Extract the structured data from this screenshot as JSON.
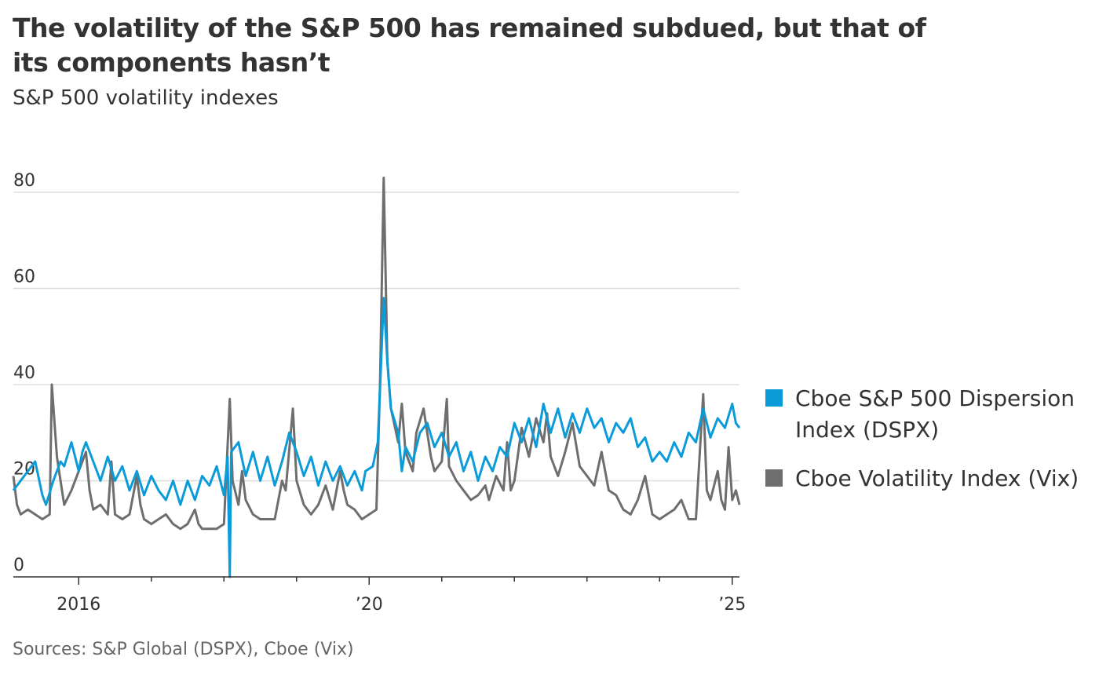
{
  "title": "The volatility of the S&P 500 has remained subdued, but that of its components hasn’t",
  "subtitle": "S&P 500 volatility indexes",
  "source": "Sources: S&P Global (DSPX), Cboe (Vix)",
  "legend": {
    "dspx": "Cboe S&P 500 Dispersion Index (DSPX)",
    "vix": "Cboe Volatility Index (Vix)"
  },
  "colors": {
    "dspx": "#0b9bd9",
    "vix": "#6e6e6e",
    "grid": "#dddddd",
    "axis": "#333333"
  },
  "chart_data": {
    "type": "line",
    "title": "The volatility of the S&P 500 has remained subdued, but that of its components hasn’t",
    "subtitle": "S&P 500 volatility indexes",
    "xlabel": "",
    "ylabel": "",
    "xlim": [
      2015.1,
      2025.1
    ],
    "ylim": [
      0,
      80
    ],
    "x_ticks": [
      2016,
      2017,
      2018,
      2019,
      2020,
      2021,
      2022,
      2023,
      2024,
      2025
    ],
    "x_tick_labels": [
      {
        "x": 2016,
        "label": "2016"
      },
      {
        "x": 2020,
        "label": "’20"
      },
      {
        "x": 2025,
        "label": "’25"
      }
    ],
    "y_ticks": [
      0,
      20,
      40,
      60,
      80
    ],
    "y_tick_labels": [
      "0",
      "20",
      "40",
      "60",
      "80"
    ],
    "grid": "horizontal",
    "legend_position": "right",
    "series": [
      {
        "name": "Cboe S&P 500 Dispersion Index (DSPX)",
        "color": "#0b9bd9",
        "points": [
          [
            2015.1,
            18
          ],
          [
            2015.2,
            20
          ],
          [
            2015.3,
            22
          ],
          [
            2015.4,
            24
          ],
          [
            2015.5,
            17
          ],
          [
            2015.55,
            15
          ],
          [
            2015.65,
            20
          ],
          [
            2015.75,
            24
          ],
          [
            2015.8,
            23
          ],
          [
            2015.9,
            28
          ],
          [
            2016.0,
            22
          ],
          [
            2016.05,
            26
          ],
          [
            2016.1,
            28
          ],
          [
            2016.2,
            24
          ],
          [
            2016.3,
            20
          ],
          [
            2016.4,
            25
          ],
          [
            2016.5,
            20
          ],
          [
            2016.6,
            23
          ],
          [
            2016.7,
            18
          ],
          [
            2016.8,
            22
          ],
          [
            2016.9,
            17
          ],
          [
            2017.0,
            21
          ],
          [
            2017.1,
            18
          ],
          [
            2017.2,
            16
          ],
          [
            2017.3,
            20
          ],
          [
            2017.4,
            15
          ],
          [
            2017.5,
            20
          ],
          [
            2017.6,
            16
          ],
          [
            2017.7,
            21
          ],
          [
            2017.8,
            19
          ],
          [
            2017.9,
            23
          ],
          [
            2018.0,
            17
          ],
          [
            2018.05,
            25
          ],
          [
            2018.08,
            0
          ],
          [
            2018.1,
            26
          ],
          [
            2018.2,
            28
          ],
          [
            2018.3,
            21
          ],
          [
            2018.4,
            26
          ],
          [
            2018.5,
            20
          ],
          [
            2018.6,
            25
          ],
          [
            2018.7,
            19
          ],
          [
            2018.8,
            24
          ],
          [
            2018.9,
            30
          ],
          [
            2019.0,
            26
          ],
          [
            2019.1,
            21
          ],
          [
            2019.2,
            25
          ],
          [
            2019.3,
            19
          ],
          [
            2019.4,
            24
          ],
          [
            2019.5,
            20
          ],
          [
            2019.6,
            23
          ],
          [
            2019.7,
            19
          ],
          [
            2019.8,
            22
          ],
          [
            2019.9,
            18
          ],
          [
            2019.95,
            22
          ],
          [
            2020.05,
            23
          ],
          [
            2020.12,
            28
          ],
          [
            2020.2,
            58
          ],
          [
            2020.25,
            45
          ],
          [
            2020.3,
            35
          ],
          [
            2020.4,
            30
          ],
          [
            2020.45,
            22
          ],
          [
            2020.5,
            27
          ],
          [
            2020.6,
            24
          ],
          [
            2020.7,
            30
          ],
          [
            2020.8,
            32
          ],
          [
            2020.9,
            27
          ],
          [
            2021.0,
            30
          ],
          [
            2021.1,
            25
          ],
          [
            2021.2,
            28
          ],
          [
            2021.3,
            22
          ],
          [
            2021.4,
            26
          ],
          [
            2021.5,
            20
          ],
          [
            2021.6,
            25
          ],
          [
            2021.7,
            22
          ],
          [
            2021.8,
            27
          ],
          [
            2021.9,
            25
          ],
          [
            2022.0,
            32
          ],
          [
            2022.1,
            28
          ],
          [
            2022.2,
            33
          ],
          [
            2022.3,
            27
          ],
          [
            2022.4,
            36
          ],
          [
            2022.5,
            30
          ],
          [
            2022.6,
            35
          ],
          [
            2022.7,
            29
          ],
          [
            2022.8,
            34
          ],
          [
            2022.9,
            30
          ],
          [
            2023.0,
            35
          ],
          [
            2023.1,
            31
          ],
          [
            2023.2,
            33
          ],
          [
            2023.3,
            28
          ],
          [
            2023.4,
            32
          ],
          [
            2023.5,
            30
          ],
          [
            2023.6,
            33
          ],
          [
            2023.7,
            27
          ],
          [
            2023.8,
            29
          ],
          [
            2023.9,
            24
          ],
          [
            2024.0,
            26
          ],
          [
            2024.1,
            24
          ],
          [
            2024.2,
            28
          ],
          [
            2024.3,
            25
          ],
          [
            2024.4,
            30
          ],
          [
            2024.5,
            28
          ],
          [
            2024.6,
            35
          ],
          [
            2024.7,
            29
          ],
          [
            2024.8,
            33
          ],
          [
            2024.9,
            31
          ],
          [
            2025.0,
            36
          ],
          [
            2025.05,
            32
          ],
          [
            2025.1,
            31
          ]
        ]
      },
      {
        "name": "Cboe Volatility Index (Vix)",
        "color": "#6e6e6e",
        "points": [
          [
            2015.1,
            21
          ],
          [
            2015.15,
            15
          ],
          [
            2015.2,
            13
          ],
          [
            2015.3,
            14
          ],
          [
            2015.4,
            13
          ],
          [
            2015.5,
            12
          ],
          [
            2015.6,
            13
          ],
          [
            2015.63,
            40
          ],
          [
            2015.7,
            25
          ],
          [
            2015.75,
            20
          ],
          [
            2015.8,
            15
          ],
          [
            2015.9,
            18
          ],
          [
            2016.0,
            22
          ],
          [
            2016.1,
            26
          ],
          [
            2016.15,
            18
          ],
          [
            2016.2,
            14
          ],
          [
            2016.3,
            15
          ],
          [
            2016.4,
            13
          ],
          [
            2016.45,
            24
          ],
          [
            2016.5,
            13
          ],
          [
            2016.6,
            12
          ],
          [
            2016.7,
            13
          ],
          [
            2016.8,
            21
          ],
          [
            2016.85,
            15
          ],
          [
            2016.9,
            12
          ],
          [
            2017.0,
            11
          ],
          [
            2017.1,
            12
          ],
          [
            2017.2,
            13
          ],
          [
            2017.3,
            11
          ],
          [
            2017.4,
            10
          ],
          [
            2017.5,
            11
          ],
          [
            2017.6,
            14
          ],
          [
            2017.65,
            11
          ],
          [
            2017.7,
            10
          ],
          [
            2017.8,
            10
          ],
          [
            2017.9,
            10
          ],
          [
            2018.0,
            11
          ],
          [
            2018.08,
            37
          ],
          [
            2018.12,
            20
          ],
          [
            2018.2,
            15
          ],
          [
            2018.25,
            22
          ],
          [
            2018.3,
            16
          ],
          [
            2018.4,
            13
          ],
          [
            2018.5,
            12
          ],
          [
            2018.6,
            12
          ],
          [
            2018.7,
            12
          ],
          [
            2018.8,
            20
          ],
          [
            2018.85,
            18
          ],
          [
            2018.95,
            35
          ],
          [
            2019.0,
            20
          ],
          [
            2019.1,
            15
          ],
          [
            2019.2,
            13
          ],
          [
            2019.3,
            15
          ],
          [
            2019.4,
            19
          ],
          [
            2019.5,
            14
          ],
          [
            2019.6,
            22
          ],
          [
            2019.65,
            18
          ],
          [
            2019.7,
            15
          ],
          [
            2019.8,
            14
          ],
          [
            2019.9,
            12
          ],
          [
            2020.0,
            13
          ],
          [
            2020.1,
            14
          ],
          [
            2020.15,
            40
          ],
          [
            2020.2,
            83
          ],
          [
            2020.25,
            45
          ],
          [
            2020.3,
            35
          ],
          [
            2020.4,
            28
          ],
          [
            2020.45,
            36
          ],
          [
            2020.5,
            26
          ],
          [
            2020.6,
            22
          ],
          [
            2020.65,
            30
          ],
          [
            2020.75,
            35
          ],
          [
            2020.85,
            25
          ],
          [
            2020.9,
            22
          ],
          [
            2021.0,
            24
          ],
          [
            2021.07,
            37
          ],
          [
            2021.1,
            23
          ],
          [
            2021.2,
            20
          ],
          [
            2021.3,
            18
          ],
          [
            2021.4,
            16
          ],
          [
            2021.5,
            17
          ],
          [
            2021.6,
            19
          ],
          [
            2021.65,
            16
          ],
          [
            2021.75,
            21
          ],
          [
            2021.85,
            18
          ],
          [
            2021.9,
            28
          ],
          [
            2021.95,
            18
          ],
          [
            2022.0,
            20
          ],
          [
            2022.1,
            31
          ],
          [
            2022.2,
            25
          ],
          [
            2022.3,
            33
          ],
          [
            2022.4,
            28
          ],
          [
            2022.45,
            34
          ],
          [
            2022.5,
            25
          ],
          [
            2022.6,
            21
          ],
          [
            2022.7,
            26
          ],
          [
            2022.8,
            32
          ],
          [
            2022.9,
            23
          ],
          [
            2023.0,
            21
          ],
          [
            2023.1,
            19
          ],
          [
            2023.2,
            26
          ],
          [
            2023.3,
            18
          ],
          [
            2023.4,
            17
          ],
          [
            2023.5,
            14
          ],
          [
            2023.6,
            13
          ],
          [
            2023.7,
            16
          ],
          [
            2023.8,
            21
          ],
          [
            2023.9,
            13
          ],
          [
            2024.0,
            12
          ],
          [
            2024.1,
            13
          ],
          [
            2024.2,
            14
          ],
          [
            2024.3,
            16
          ],
          [
            2024.4,
            12
          ],
          [
            2024.5,
            12
          ],
          [
            2024.6,
            38
          ],
          [
            2024.65,
            18
          ],
          [
            2024.7,
            16
          ],
          [
            2024.8,
            22
          ],
          [
            2024.85,
            16
          ],
          [
            2024.9,
            14
          ],
          [
            2024.95,
            27
          ],
          [
            2025.0,
            16
          ],
          [
            2025.05,
            18
          ],
          [
            2025.1,
            15
          ]
        ]
      }
    ]
  }
}
